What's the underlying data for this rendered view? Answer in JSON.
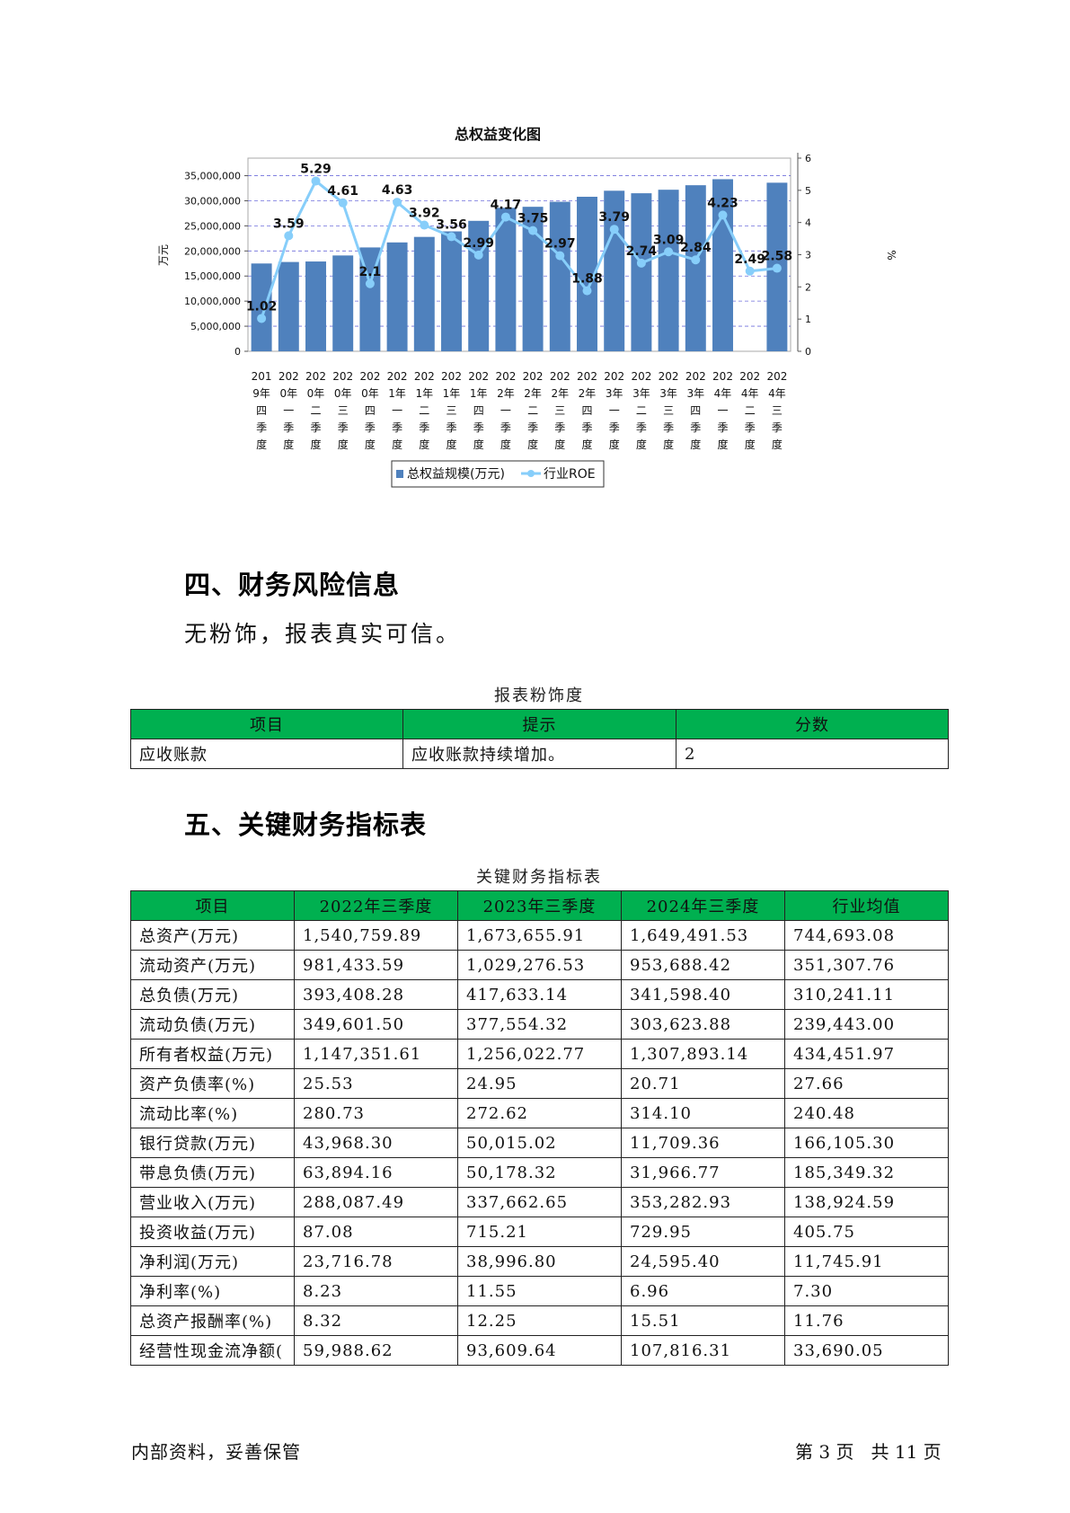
{
  "chart": {
    "title": "总权益变化图",
    "y_left_label": "万元",
    "y_right_label": "%",
    "legend_bar": "总权益规模(万元)",
    "legend_line": "行业ROE",
    "left_ticks": [
      "0",
      "5,000,000",
      "10,000,000",
      "15,000,000",
      "20,000,000",
      "25,000,000",
      "30,000,000",
      "35,000,000"
    ],
    "right_ticks": [
      "0",
      "1",
      "2",
      "3",
      "4",
      "5",
      "6"
    ],
    "bar_color": "#4f81bd",
    "line_color": "#87cefa"
  },
  "chart_data": {
    "type": "bar",
    "categories": [
      [
        "201",
        "9年",
        "四",
        "季",
        "度"
      ],
      [
        "202",
        "0年",
        "一",
        "季",
        "度"
      ],
      [
        "202",
        "0年",
        "二",
        "季",
        "度"
      ],
      [
        "202",
        "0年",
        "三",
        "季",
        "度"
      ],
      [
        "202",
        "0年",
        "四",
        "季",
        "度"
      ],
      [
        "202",
        "1年",
        "一",
        "季",
        "度"
      ],
      [
        "202",
        "1年",
        "二",
        "季",
        "度"
      ],
      [
        "202",
        "1年",
        "三",
        "季",
        "度"
      ],
      [
        "202",
        "1年",
        "四",
        "季",
        "度"
      ],
      [
        "202",
        "2年",
        "一",
        "季",
        "度"
      ],
      [
        "202",
        "2年",
        "二",
        "季",
        "度"
      ],
      [
        "202",
        "2年",
        "三",
        "季",
        "度"
      ],
      [
        "202",
        "2年",
        "四",
        "季",
        "度"
      ],
      [
        "202",
        "3年",
        "一",
        "季",
        "度"
      ],
      [
        "202",
        "3年",
        "二",
        "季",
        "度"
      ],
      [
        "202",
        "3年",
        "三",
        "季",
        "度"
      ],
      [
        "202",
        "3年",
        "四",
        "季",
        "度"
      ],
      [
        "202",
        "4年",
        "一",
        "季",
        "度"
      ],
      [
        "202",
        "4年",
        "二",
        "季",
        "度"
      ],
      [
        "202",
        "4年",
        "三",
        "季",
        "度"
      ]
    ],
    "series": [
      {
        "name": "总权益规模(万元)",
        "type": "bar",
        "axis": "left",
        "values": [
          17500000,
          17800000,
          17900000,
          19100000,
          20700000,
          21700000,
          22800000,
          23900000,
          26000000,
          28600000,
          28800000,
          29800000,
          30800000,
          32000000,
          31500000,
          32200000,
          33100000,
          34300000,
          null,
          33600000
        ]
      },
      {
        "name": "行业ROE",
        "type": "line",
        "axis": "right",
        "values": [
          1.02,
          3.59,
          5.29,
          4.61,
          2.1,
          4.63,
          3.92,
          3.56,
          2.99,
          4.17,
          3.75,
          2.97,
          1.88,
          3.79,
          2.74,
          3.09,
          2.84,
          4.23,
          2.49,
          2.58
        ],
        "labels": [
          "1.02",
          "3.59",
          "5.29",
          "4.61",
          "2.1",
          "4.63",
          "3.92",
          "3.56",
          "2.99",
          "4.17",
          "3.75",
          "2.97",
          "1.88",
          "3.79",
          "2.74",
          "3.09",
          "2.84",
          "4.23",
          "2.49",
          "2.58"
        ]
      }
    ],
    "ylim_left": [
      0,
      38500000
    ],
    "ylim_right": [
      0,
      6
    ],
    "legend_position": "bottom"
  },
  "section4": {
    "heading": "四、财务风险信息",
    "text": "无粉饰，报表真实可信。"
  },
  "whitewash_table": {
    "caption": "报表粉饰度",
    "headers": [
      "项目",
      "提示",
      "分数"
    ],
    "rows": [
      [
        "应收账款",
        "应收账款持续增加。",
        "2"
      ]
    ]
  },
  "section5": {
    "heading": "五、关键财务指标表"
  },
  "key_table": {
    "caption": "关键财务指标表",
    "headers": [
      "项目",
      "2022年三季度",
      "2023年三季度",
      "2024年三季度",
      "行业均值"
    ],
    "rows": [
      [
        "总资产(万元)",
        "1,540,759.89",
        "1,673,655.91",
        "1,649,491.53",
        "744,693.08"
      ],
      [
        "流动资产(万元)",
        "981,433.59",
        "1,029,276.53",
        "953,688.42",
        "351,307.76"
      ],
      [
        "总负债(万元)",
        "393,408.28",
        "417,633.14",
        "341,598.40",
        "310,241.11"
      ],
      [
        "流动负债(万元)",
        "349,601.50",
        "377,554.32",
        "303,623.88",
        "239,443.00"
      ],
      [
        "所有者权益(万元)",
        "1,147,351.61",
        "1,256,022.77",
        "1,307,893.14",
        "434,451.97"
      ],
      [
        "资产负债率(%)",
        "25.53",
        "24.95",
        "20.71",
        "27.66"
      ],
      [
        "流动比率(%)",
        "280.73",
        "272.62",
        "314.10",
        "240.48"
      ],
      [
        "银行贷款(万元)",
        "43,968.30",
        "50,015.02",
        "11,709.36",
        "166,105.30"
      ],
      [
        "带息负债(万元)",
        "63,894.16",
        "50,178.32",
        "31,966.77",
        "185,349.32"
      ],
      [
        "营业收入(万元)",
        "288,087.49",
        "337,662.65",
        "353,282.93",
        "138,924.59"
      ],
      [
        "投资收益(万元)",
        "87.08",
        "715.21",
        "729.95",
        "405.75"
      ],
      [
        "净利润(万元)",
        "23,716.78",
        "38,996.80",
        "24,595.40",
        "11,745.91"
      ],
      [
        "净利率(%)",
        "8.23",
        "11.55",
        "6.96",
        "7.30"
      ],
      [
        "总资产报酬率(%)",
        "8.32",
        "12.25",
        "15.51",
        "11.76"
      ],
      [
        "经营性现金流净额(",
        "59,988.62",
        "93,609.64",
        "107,816.31",
        "33,690.05"
      ]
    ]
  },
  "footer": {
    "left": "内部资料，妥善保管",
    "right": "第 3 页   共 11 页"
  },
  "colors": {
    "table_header_green": "#00b050",
    "gridline": "#3333cc"
  }
}
